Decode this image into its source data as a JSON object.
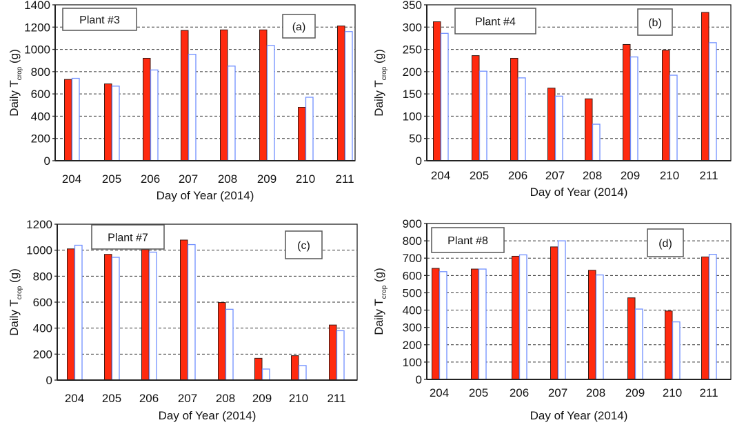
{
  "colors": {
    "measured_fill": "#FF2A0F",
    "measured_edge": "#3a1a14",
    "estimated_edge": "#6F8FFF",
    "estimated_fill": "#FFFFFF",
    "grid": "#333333",
    "axis": "#222222"
  },
  "chart_data": [
    {
      "type": "bar",
      "panel_letter": "(a)",
      "plant_label": "Plant #3",
      "title": "",
      "xlabel": "Day of Year (2014)",
      "ylabel_main": "Daily T",
      "ylabel_sub": "crop",
      "ylabel_unit": " (g)",
      "ylim": [
        0,
        1400
      ],
      "yticks": [
        0,
        200,
        400,
        600,
        800,
        1000,
        1200,
        1400
      ],
      "grid": "horizontal-dashed",
      "categories": [
        "204",
        "205",
        "206",
        "207",
        "208",
        "209",
        "210",
        "211"
      ],
      "series": [
        {
          "name": "red-filled",
          "values": [
            730,
            690,
            920,
            1170,
            1175,
            1175,
            480,
            1210
          ]
        },
        {
          "name": "blue-outline",
          "values": [
            740,
            670,
            815,
            955,
            850,
            1035,
            570,
            1160
          ]
        }
      ]
    },
    {
      "type": "bar",
      "panel_letter": "(b)",
      "plant_label": "Plant #4",
      "title": "",
      "xlabel": "Day of Year (2014)",
      "ylabel_main": "Daily T",
      "ylabel_sub": "crop",
      "ylabel_unit": " (g)",
      "ylim": [
        0,
        350
      ],
      "yticks": [
        0,
        50,
        100,
        150,
        200,
        250,
        300,
        350
      ],
      "grid": "horizontal-dashed",
      "categories": [
        "204",
        "205",
        "206",
        "207",
        "208",
        "209",
        "210",
        "211"
      ],
      "series": [
        {
          "name": "red-filled",
          "values": [
            312,
            236,
            230,
            163,
            139,
            261,
            248,
            333
          ]
        },
        {
          "name": "blue-outline",
          "values": [
            286,
            201,
            186,
            145,
            82,
            233,
            192,
            265
          ]
        }
      ]
    },
    {
      "type": "bar",
      "panel_letter": "(c)",
      "plant_label": "Plant #7",
      "title": "",
      "xlabel": "Day of Year (2014)",
      "ylabel_main": "Daily T",
      "ylabel_sub": "crop",
      "ylabel_unit": " (g)",
      "ylim": [
        0,
        1200
      ],
      "yticks": [
        0,
        200,
        400,
        600,
        800,
        1000,
        1200
      ],
      "grid": "horizontal-dashed",
      "categories": [
        "204",
        "205",
        "206",
        "207",
        "208",
        "209",
        "210",
        "211"
      ],
      "series": [
        {
          "name": "red-filled",
          "values": [
            1010,
            968,
            1005,
            1078,
            597,
            168,
            188,
            424
          ]
        },
        {
          "name": "blue-outline",
          "values": [
            1038,
            945,
            985,
            1043,
            545,
            85,
            112,
            380
          ]
        }
      ]
    },
    {
      "type": "bar",
      "panel_letter": "(d)",
      "plant_label": "Plant #8",
      "title": "",
      "xlabel": "Day of Year (2014)",
      "ylabel_main": "Daily T",
      "ylabel_sub": "crop",
      "ylabel_unit": " (g)",
      "ylim": [
        0,
        900
      ],
      "yticks": [
        0,
        100,
        200,
        300,
        400,
        500,
        600,
        700,
        800,
        900
      ],
      "grid": "horizontal-dashed",
      "categories": [
        "204",
        "205",
        "206",
        "207",
        "208",
        "209",
        "210",
        "211"
      ],
      "series": [
        {
          "name": "red-filled",
          "values": [
            641,
            637,
            711,
            765,
            630,
            471,
            395,
            707
          ]
        },
        {
          "name": "blue-outline",
          "values": [
            622,
            637,
            719,
            800,
            603,
            406,
            332,
            722
          ]
        }
      ]
    }
  ]
}
